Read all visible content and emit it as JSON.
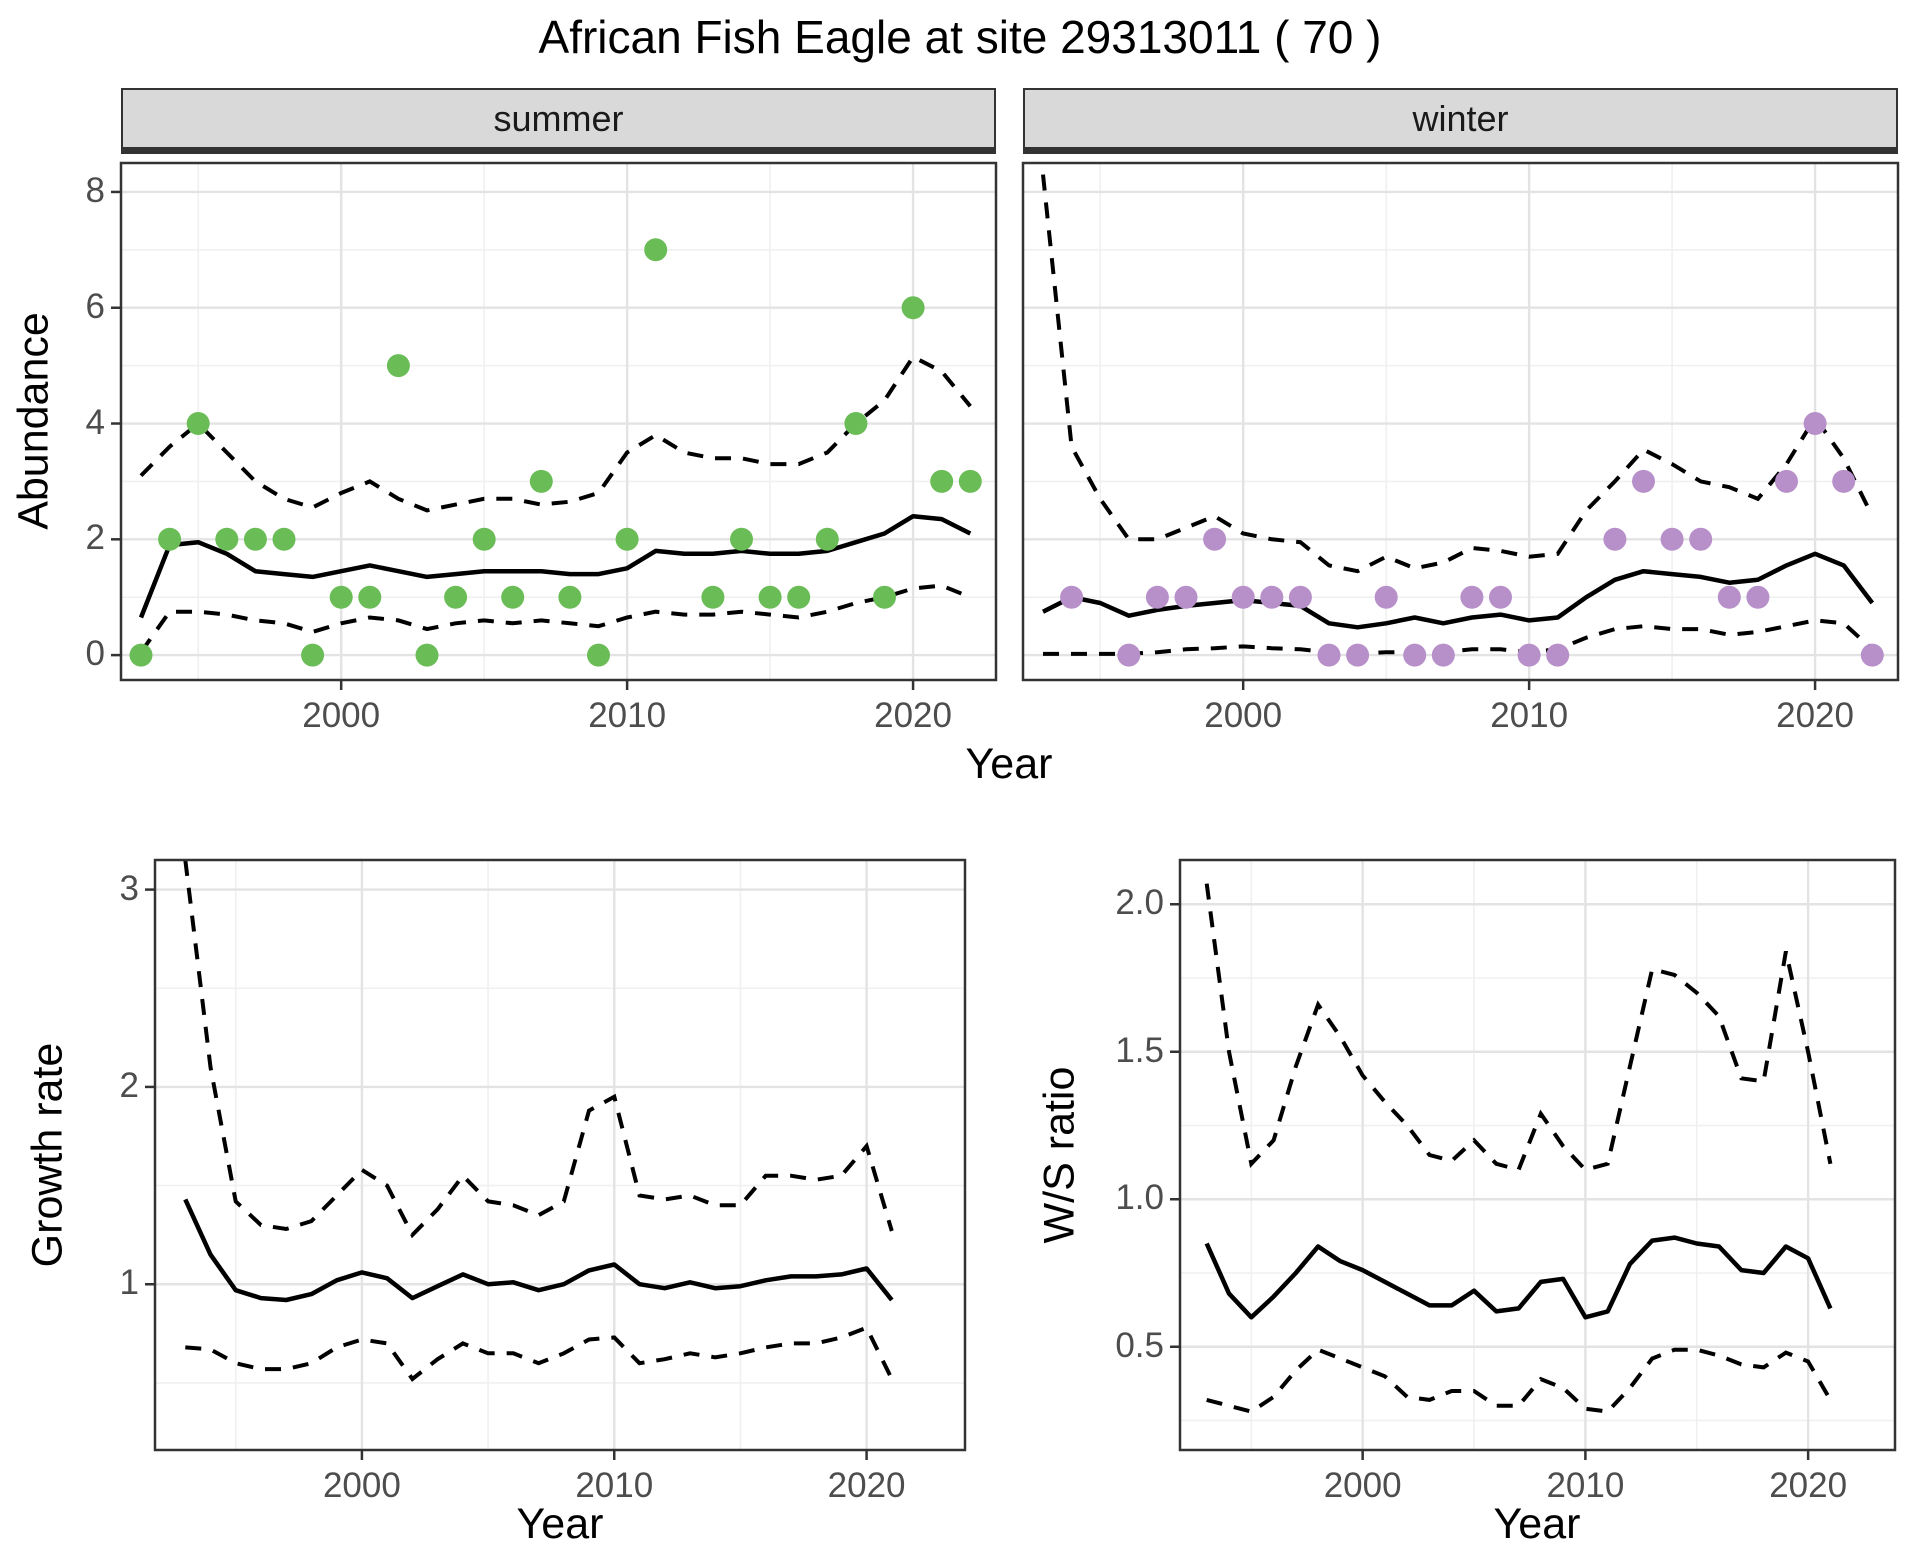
{
  "title": "African Fish Eagle at site 29313011 ( 70 )",
  "colors": {
    "summer_points": "#6abd56",
    "winter_points": "#b78fc9",
    "line": "#000000",
    "panel_border": "#333333",
    "grid_major": "#e3e3e3",
    "grid_minor": "#f0f0f0",
    "strip_background": "#d9d9d9",
    "tick_text": "#4d4d4d"
  },
  "chart_data": [
    {
      "id": "abundance-summer",
      "type": "scatter",
      "facet": "summer",
      "ylabel": "Abundance",
      "xlabel": "Year",
      "xlim": [
        1992.3,
        2022.9
      ],
      "ylim": [
        -0.43,
        8.5
      ],
      "x_major": [
        2000,
        2010,
        2020
      ],
      "x_tick_labels": [
        "2000",
        "2010",
        "2020"
      ],
      "x_minor": [
        1995,
        2005,
        2015
      ],
      "y_major": [
        8,
        6,
        4,
        2,
        0
      ],
      "y_tick_labels": [
        "8",
        "6",
        "4",
        "2",
        "0"
      ],
      "y_minor": [
        7,
        5,
        3,
        1
      ],
      "point_color": "#6abd56",
      "points": {
        "years": [
          1993,
          1994,
          1995,
          1996,
          1997,
          1998,
          1999,
          2000,
          2001,
          2002,
          2003,
          2004,
          2005,
          2006,
          2007,
          2008,
          2009,
          2010,
          2011,
          2013,
          2014,
          2015,
          2016,
          2017,
          2018,
          2019,
          2020,
          2021,
          2022
        ],
        "values": [
          0,
          2,
          4,
          2,
          2,
          2,
          0,
          1,
          1,
          5,
          0,
          1,
          2,
          1,
          3,
          1,
          0,
          2,
          7,
          1,
          2,
          1,
          1,
          2,
          4,
          1,
          6,
          3,
          3
        ]
      },
      "line_years": [
        1993,
        1994,
        1995,
        1996,
        1997,
        1998,
        1999,
        2000,
        2001,
        2002,
        2003,
        2004,
        2005,
        2006,
        2007,
        2008,
        2009,
        2010,
        2011,
        2012,
        2013,
        2014,
        2015,
        2016,
        2017,
        2018,
        2019,
        2020,
        2021,
        2022
      ],
      "median": [
        0.65,
        1.9,
        1.95,
        1.75,
        1.45,
        1.4,
        1.35,
        1.45,
        1.55,
        1.45,
        1.35,
        1.4,
        1.45,
        1.45,
        1.45,
        1.4,
        1.4,
        1.5,
        1.8,
        1.75,
        1.75,
        1.8,
        1.75,
        1.75,
        1.8,
        1.95,
        2.1,
        2.4,
        2.35,
        2.1
      ],
      "upper": [
        3.1,
        3.6,
        4.0,
        3.5,
        3.0,
        2.7,
        2.55,
        2.8,
        3.0,
        2.7,
        2.5,
        2.6,
        2.7,
        2.7,
        2.6,
        2.65,
        2.8,
        3.5,
        3.8,
        3.5,
        3.4,
        3.4,
        3.3,
        3.3,
        3.5,
        4.0,
        4.4,
        5.15,
        4.9,
        4.3
      ],
      "lower": [
        0.05,
        0.75,
        0.75,
        0.7,
        0.6,
        0.55,
        0.4,
        0.55,
        0.65,
        0.6,
        0.45,
        0.55,
        0.6,
        0.55,
        0.6,
        0.55,
        0.5,
        0.65,
        0.75,
        0.7,
        0.7,
        0.75,
        0.7,
        0.65,
        0.75,
        0.9,
        1.0,
        1.15,
        1.2,
        1.0
      ]
    },
    {
      "id": "abundance-winter",
      "type": "scatter",
      "facet": "winter",
      "ylabel": "Abundance",
      "xlabel": "Year",
      "xlim": [
        1992.3,
        2022.9
      ],
      "ylim": [
        -0.43,
        8.5
      ],
      "x_major": [
        2000,
        2010,
        2020
      ],
      "x_tick_labels": [
        "2000",
        "2010",
        "2020"
      ],
      "x_minor": [
        1995,
        2005,
        2015
      ],
      "y_major": [
        8,
        6,
        4,
        2,
        0
      ],
      "y_tick_labels": [
        "8",
        "6",
        "4",
        "2",
        "0"
      ],
      "y_minor": [
        7,
        5,
        3,
        1
      ],
      "point_color": "#b78fc9",
      "points": {
        "years": [
          1994,
          1996,
          1997,
          1998,
          1999,
          2000,
          2001,
          2002,
          2003,
          2004,
          2005,
          2006,
          2007,
          2008,
          2009,
          2010,
          2011,
          2013,
          2014,
          2015,
          2016,
          2017,
          2018,
          2019,
          2020,
          2021,
          2022
        ],
        "values": [
          1,
          0,
          1,
          1,
          2,
          1,
          1,
          1,
          0,
          0,
          1,
          0,
          0,
          1,
          1,
          0,
          0,
          2,
          3,
          2,
          2,
          1,
          1,
          3,
          4,
          3,
          0
        ]
      },
      "line_years": [
        1993,
        1994,
        1995,
        1996,
        1997,
        1998,
        1999,
        2000,
        2001,
        2002,
        2003,
        2004,
        2005,
        2006,
        2007,
        2008,
        2009,
        2010,
        2011,
        2012,
        2013,
        2014,
        2015,
        2016,
        2017,
        2018,
        2019,
        2020,
        2021,
        2022
      ],
      "median": [
        0.75,
        1.0,
        0.9,
        0.68,
        0.78,
        0.85,
        0.9,
        0.95,
        0.9,
        0.85,
        0.55,
        0.48,
        0.55,
        0.65,
        0.55,
        0.65,
        0.7,
        0.6,
        0.65,
        1.0,
        1.3,
        1.45,
        1.4,
        1.35,
        1.25,
        1.3,
        1.55,
        1.75,
        1.55,
        0.9
      ],
      "upper": [
        8.3,
        3.6,
        2.7,
        2.0,
        2.0,
        2.2,
        2.4,
        2.1,
        2.0,
        1.95,
        1.55,
        1.45,
        1.7,
        1.5,
        1.6,
        1.85,
        1.8,
        1.7,
        1.75,
        2.5,
        3.0,
        3.55,
        3.3,
        3.0,
        2.9,
        2.7,
        3.3,
        4.1,
        3.4,
        2.4
      ],
      "lower": [
        0.02,
        0.02,
        0.02,
        0.02,
        0.05,
        0.1,
        0.12,
        0.15,
        0.12,
        0.1,
        0.05,
        0.02,
        0.05,
        0.05,
        0.05,
        0.1,
        0.1,
        0.05,
        0.1,
        0.3,
        0.45,
        0.5,
        0.45,
        0.45,
        0.35,
        0.4,
        0.5,
        0.6,
        0.55,
        0.1
      ]
    },
    {
      "id": "growth-rate",
      "type": "line",
      "facet": null,
      "ylabel": "Growth rate",
      "xlabel": "Year",
      "xlim": [
        1991.8,
        2023.9
      ],
      "ylim": [
        0.16,
        3.15
      ],
      "x_major": [
        2000,
        2010,
        2020
      ],
      "x_tick_labels": [
        "2000",
        "2010",
        "2020"
      ],
      "x_minor": [
        1995,
        2005,
        2015
      ],
      "y_major": [
        3,
        2,
        1
      ],
      "y_tick_labels": [
        "3",
        "2",
        "1"
      ],
      "y_minor": [
        2.5,
        1.5,
        0.5
      ],
      "point_color": null,
      "points": null,
      "line_years": [
        1993,
        1994,
        1995,
        1996,
        1997,
        1998,
        1999,
        2000,
        2001,
        2002,
        2003,
        2004,
        2005,
        2006,
        2007,
        2008,
        2009,
        2010,
        2011,
        2012,
        2013,
        2014,
        2015,
        2016,
        2017,
        2018,
        2019,
        2020,
        2021
      ],
      "median": [
        1.43,
        1.15,
        0.97,
        0.93,
        0.92,
        0.95,
        1.02,
        1.06,
        1.03,
        0.93,
        0.99,
        1.05,
        1.0,
        1.01,
        0.97,
        1.0,
        1.07,
        1.1,
        1.0,
        0.98,
        1.01,
        0.98,
        0.99,
        1.02,
        1.04,
        1.04,
        1.05,
        1.08,
        0.92
      ],
      "upper": [
        3.15,
        2.1,
        1.42,
        1.3,
        1.28,
        1.32,
        1.45,
        1.58,
        1.5,
        1.25,
        1.38,
        1.55,
        1.42,
        1.4,
        1.35,
        1.42,
        1.88,
        1.95,
        1.45,
        1.43,
        1.45,
        1.4,
        1.4,
        1.55,
        1.55,
        1.53,
        1.55,
        1.7,
        1.27
      ],
      "lower": [
        0.68,
        0.67,
        0.6,
        0.57,
        0.57,
        0.6,
        0.68,
        0.72,
        0.7,
        0.52,
        0.62,
        0.7,
        0.65,
        0.65,
        0.6,
        0.65,
        0.72,
        0.73,
        0.6,
        0.62,
        0.65,
        0.63,
        0.65,
        0.68,
        0.7,
        0.7,
        0.73,
        0.78,
        0.52
      ]
    },
    {
      "id": "ws-ratio",
      "type": "line",
      "facet": null,
      "ylabel": "W/S ratio",
      "xlabel": "Year",
      "xlim": [
        1991.8,
        2023.9
      ],
      "ylim": [
        0.15,
        2.15
      ],
      "x_major": [
        2000,
        2010,
        2020
      ],
      "x_tick_labels": [
        "2000",
        "2010",
        "2020"
      ],
      "x_minor": [
        1995,
        2005,
        2015
      ],
      "y_major": [
        2.0,
        1.5,
        1.0,
        0.5
      ],
      "y_tick_labels": [
        "2.0",
        "1.5",
        "1.0",
        "0.5"
      ],
      "y_minor": [
        1.75,
        1.25,
        0.75,
        0.25
      ],
      "point_color": null,
      "points": null,
      "line_years": [
        1993,
        1994,
        1995,
        1996,
        1997,
        1998,
        1999,
        2000,
        2001,
        2002,
        2003,
        2004,
        2005,
        2006,
        2007,
        2008,
        2009,
        2010,
        2011,
        2012,
        2013,
        2014,
        2015,
        2016,
        2017,
        2018,
        2019,
        2020,
        2021
      ],
      "median": [
        0.85,
        0.68,
        0.6,
        0.67,
        0.75,
        0.84,
        0.79,
        0.76,
        0.72,
        0.68,
        0.64,
        0.64,
        0.69,
        0.62,
        0.63,
        0.72,
        0.73,
        0.6,
        0.62,
        0.78,
        0.86,
        0.87,
        0.85,
        0.84,
        0.76,
        0.75,
        0.84,
        0.8,
        0.63
      ],
      "upper": [
        2.07,
        1.5,
        1.12,
        1.2,
        1.45,
        1.66,
        1.55,
        1.42,
        1.33,
        1.25,
        1.15,
        1.13,
        1.2,
        1.12,
        1.1,
        1.29,
        1.18,
        1.1,
        1.12,
        1.45,
        1.78,
        1.76,
        1.7,
        1.62,
        1.41,
        1.4,
        1.84,
        1.5,
        1.12
      ],
      "lower": [
        0.32,
        0.3,
        0.28,
        0.33,
        0.42,
        0.49,
        0.46,
        0.43,
        0.4,
        0.33,
        0.32,
        0.35,
        0.35,
        0.3,
        0.3,
        0.39,
        0.36,
        0.29,
        0.28,
        0.36,
        0.46,
        0.49,
        0.49,
        0.47,
        0.44,
        0.43,
        0.48,
        0.45,
        0.32
      ]
    }
  ]
}
